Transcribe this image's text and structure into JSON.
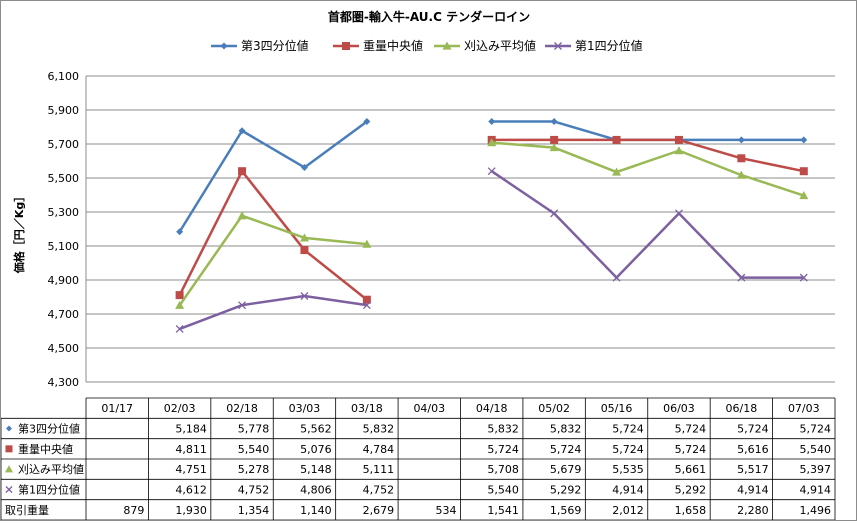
{
  "chart_data": {
    "type": "line",
    "title": "首都圏-輸入牛-AU.C テンダーロイン",
    "ylabel": "価格［円／Kg］",
    "xlabel": "",
    "ylim": [
      4300,
      6100
    ],
    "y_ticks": [
      "6,100",
      "5,900",
      "5,700",
      "5,500",
      "5,300",
      "5,100",
      "4,900",
      "4,700",
      "4,500",
      "4,300"
    ],
    "y_tick_values": [
      6100,
      5900,
      5700,
      5500,
      5300,
      5100,
      4900,
      4700,
      4500,
      4300
    ],
    "categories": [
      "01/17",
      "02/03",
      "02/18",
      "03/03",
      "03/18",
      "04/03",
      "04/18",
      "05/02",
      "05/16",
      "06/03",
      "06/18",
      "07/03"
    ],
    "grid": "horizontal",
    "legend_position": "top",
    "series": [
      {
        "name": "第3四分位値",
        "color": "#4a7ebb",
        "marker": "diamond",
        "values": [
          null,
          5184,
          5778,
          5562,
          5832,
          null,
          5832,
          5832,
          5724,
          5724,
          5724,
          5724
        ],
        "labels": [
          "",
          "5,184",
          "5,778",
          "5,562",
          "5,832",
          "",
          "5,832",
          "5,832",
          "5,724",
          "5,724",
          "5,724",
          "5,724"
        ]
      },
      {
        "name": "重量中央値",
        "color": "#be4b48",
        "marker": "square",
        "values": [
          null,
          4811,
          5540,
          5076,
          4784,
          null,
          5724,
          5724,
          5724,
          5724,
          5616,
          5540
        ],
        "labels": [
          "",
          "4,811",
          "5,540",
          "5,076",
          "4,784",
          "",
          "5,724",
          "5,724",
          "5,724",
          "5,724",
          "5,616",
          "5,540"
        ]
      },
      {
        "name": "刈込み平均値",
        "color": "#98b954",
        "marker": "triangle",
        "values": [
          null,
          4751,
          5278,
          5148,
          5111,
          null,
          5708,
          5679,
          5535,
          5661,
          5517,
          5397
        ],
        "labels": [
          "",
          "4,751",
          "5,278",
          "5,148",
          "5,111",
          "",
          "5,708",
          "5,679",
          "5,535",
          "5,661",
          "5,517",
          "5,397"
        ]
      },
      {
        "name": "第1四分位値",
        "color": "#7d60a0",
        "marker": "x",
        "values": [
          null,
          4612,
          4752,
          4806,
          4752,
          null,
          5540,
          5292,
          4914,
          5292,
          4914,
          4914
        ],
        "labels": [
          "",
          "4,612",
          "4,752",
          "4,806",
          "4,752",
          "",
          "5,540",
          "5,292",
          "4,914",
          "5,292",
          "4,914",
          "4,914"
        ]
      }
    ],
    "table_extra_row": {
      "name": "取引重量",
      "labels": [
        "879",
        "1,930",
        "1,354",
        "1,140",
        "2,679",
        "534",
        "1,541",
        "1,569",
        "2,012",
        "1,658",
        "2,280",
        "1,496"
      ]
    }
  }
}
